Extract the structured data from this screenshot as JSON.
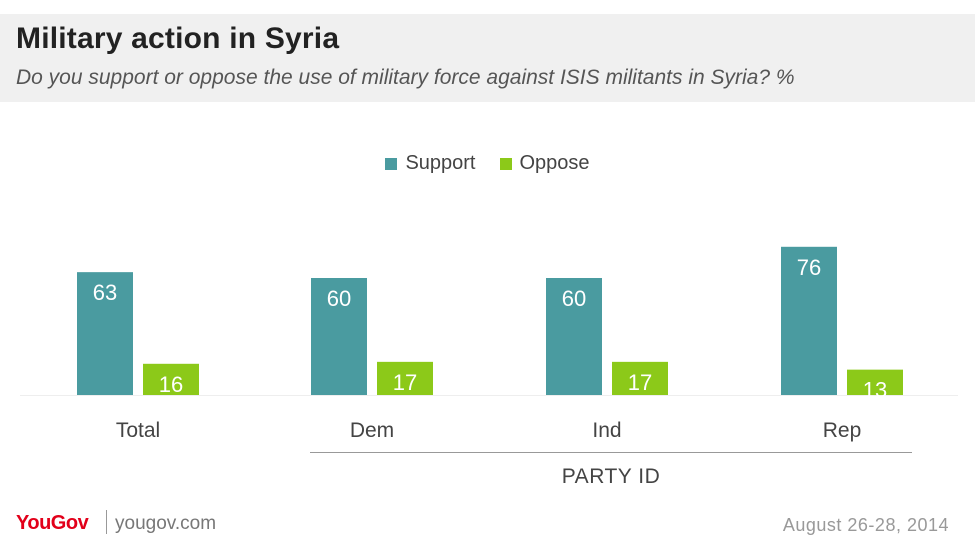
{
  "header": {
    "title": "Military action in Syria",
    "subtitle": "Do you support or oppose the use of military force against ISIS militants in Syria? %"
  },
  "footer": {
    "brand": "YouGov",
    "url": "yougov.com",
    "date": "August 26-28, 2014"
  },
  "colors": {
    "support": "#4a9ba0",
    "oppose": "#8cc919",
    "label_on_bar": "#ffffff",
    "axis_text": "#444444"
  },
  "chart_data": {
    "type": "bar",
    "title": "Military action in Syria",
    "categories": [
      "Total",
      "Dem",
      "Ind",
      "Rep"
    ],
    "group_label": {
      "text": "PARTY ID",
      "categories": [
        "Dem",
        "Ind",
        "Rep"
      ]
    },
    "series": [
      {
        "name": "Support",
        "values": [
          63,
          60,
          60,
          76
        ],
        "color": "#4a9ba0"
      },
      {
        "name": "Oppose",
        "values": [
          16,
          17,
          17,
          13
        ],
        "color": "#8cc919"
      }
    ],
    "legend_position": "top-center",
    "ylim": [
      0,
      100
    ],
    "grid": false,
    "data_labels": true
  }
}
